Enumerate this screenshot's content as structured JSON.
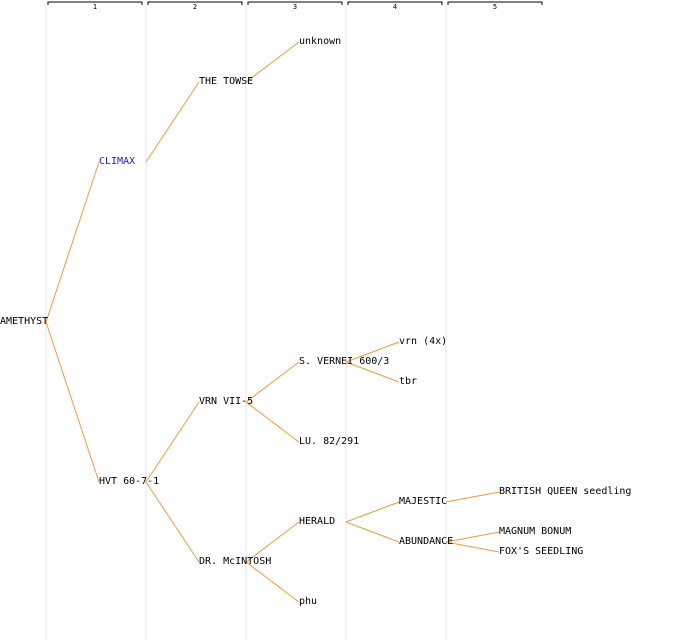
{
  "generations": [
    "1",
    "2",
    "3",
    "4",
    "5"
  ],
  "colors": {
    "edge": "#f09a3e",
    "link": "#1a1ad0",
    "text": "#000000"
  },
  "nodes": [
    {
      "id": "amethyst",
      "label": "AMETHYST",
      "gen": 0,
      "link": false
    },
    {
      "id": "climax",
      "label": "CLIMAX",
      "gen": 1,
      "link": true,
      "parent": "amethyst"
    },
    {
      "id": "hvt",
      "label": "HVT 60-7-1",
      "gen": 1,
      "link": false,
      "parent": "amethyst"
    },
    {
      "id": "towse",
      "label": "THE TOWSE",
      "gen": 2,
      "link": false,
      "parent": "climax"
    },
    {
      "id": "vrn7",
      "label": "VRN VII-5",
      "gen": 2,
      "link": false,
      "parent": "hvt"
    },
    {
      "id": "mcintosh",
      "label": "DR. McINTOSH",
      "gen": 2,
      "link": false,
      "parent": "hvt"
    },
    {
      "id": "unknown",
      "label": "unknown",
      "gen": 3,
      "link": false,
      "parent": "towse"
    },
    {
      "id": "sverne",
      "label": "S. VERNEI 600/3",
      "gen": 3,
      "link": false,
      "parent": "vrn7"
    },
    {
      "id": "lu",
      "label": "LU. 82/291",
      "gen": 3,
      "link": false,
      "parent": "vrn7"
    },
    {
      "id": "herald",
      "label": "HERALD",
      "gen": 3,
      "link": false,
      "parent": "mcintosh"
    },
    {
      "id": "phu",
      "label": "phu",
      "gen": 3,
      "link": false,
      "parent": "mcintosh"
    },
    {
      "id": "vrn4x",
      "label": "vrn (4x)",
      "gen": 4,
      "link": false,
      "parent": "sverne"
    },
    {
      "id": "tbr",
      "label": "tbr",
      "gen": 4,
      "link": false,
      "parent": "sverne"
    },
    {
      "id": "majestic",
      "label": "MAJESTIC",
      "gen": 4,
      "link": false,
      "parent": "herald"
    },
    {
      "id": "abundance",
      "label": "ABUNDANCE",
      "gen": 4,
      "link": false,
      "parent": "herald"
    },
    {
      "id": "bqueen",
      "label": "BRITISH QUEEN seedling",
      "gen": 5,
      "link": false,
      "parent": "majestic"
    },
    {
      "id": "magnum",
      "label": "MAGNUM BONUM",
      "gen": 5,
      "link": false,
      "parent": "abundance"
    },
    {
      "id": "foxs",
      "label": "FOX'S SEEDLING",
      "gen": 5,
      "link": false,
      "parent": "abundance"
    }
  ]
}
